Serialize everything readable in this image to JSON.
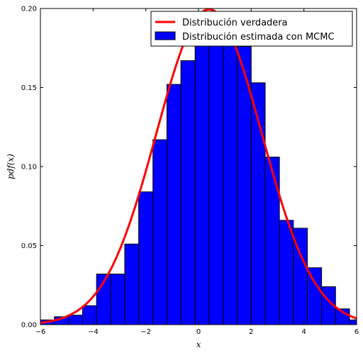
{
  "chart_data": {
    "type": "bar",
    "title": "",
    "xlabel": "x",
    "ylabel": "pdf(x)",
    "xlim": [
      -6,
      6
    ],
    "ylim": [
      0,
      0.2
    ],
    "grid": false,
    "legend_placement": "top-right",
    "xticks": [
      -6,
      -4,
      -2,
      0,
      2,
      4,
      6
    ],
    "xtick_labels": [
      "−6",
      "−4",
      "−2",
      "0",
      "2",
      "4",
      "6"
    ],
    "yticks": [
      0,
      0.05,
      0.1,
      0.15,
      0.2
    ],
    "ytick_labels": [
      "0.00",
      "0.05",
      "0.10",
      "0.15",
      "0.20"
    ],
    "series": [
      {
        "name": "Distribución verdadera",
        "kind": "line",
        "color": "#ff0000",
        "distribution": "normal",
        "mean": 0.4,
        "std": 2.0
      },
      {
        "name": "Distribución estimada con MCMC",
        "kind": "histogram",
        "color": "#0000ff",
        "bin_edges": [
          -6,
          -5.47,
          -4.93,
          -4.4,
          -3.87,
          -3.33,
          -2.8,
          -2.27,
          -1.73,
          -1.2,
          -0.67,
          -0.13,
          0.4,
          0.93,
          1.47,
          2.0,
          2.53,
          3.07,
          3.6,
          4.13,
          4.67,
          5.2,
          5.73,
          6
        ],
        "values": [
          0.003,
          0.005,
          0.006,
          0.012,
          0.032,
          0.032,
          0.051,
          0.084,
          0.117,
          0.152,
          0.167,
          0.196,
          0.196,
          0.193,
          0.176,
          0.153,
          0.106,
          0.066,
          0.061,
          0.036,
          0.024,
          0.01,
          0.003
        ]
      }
    ]
  }
}
